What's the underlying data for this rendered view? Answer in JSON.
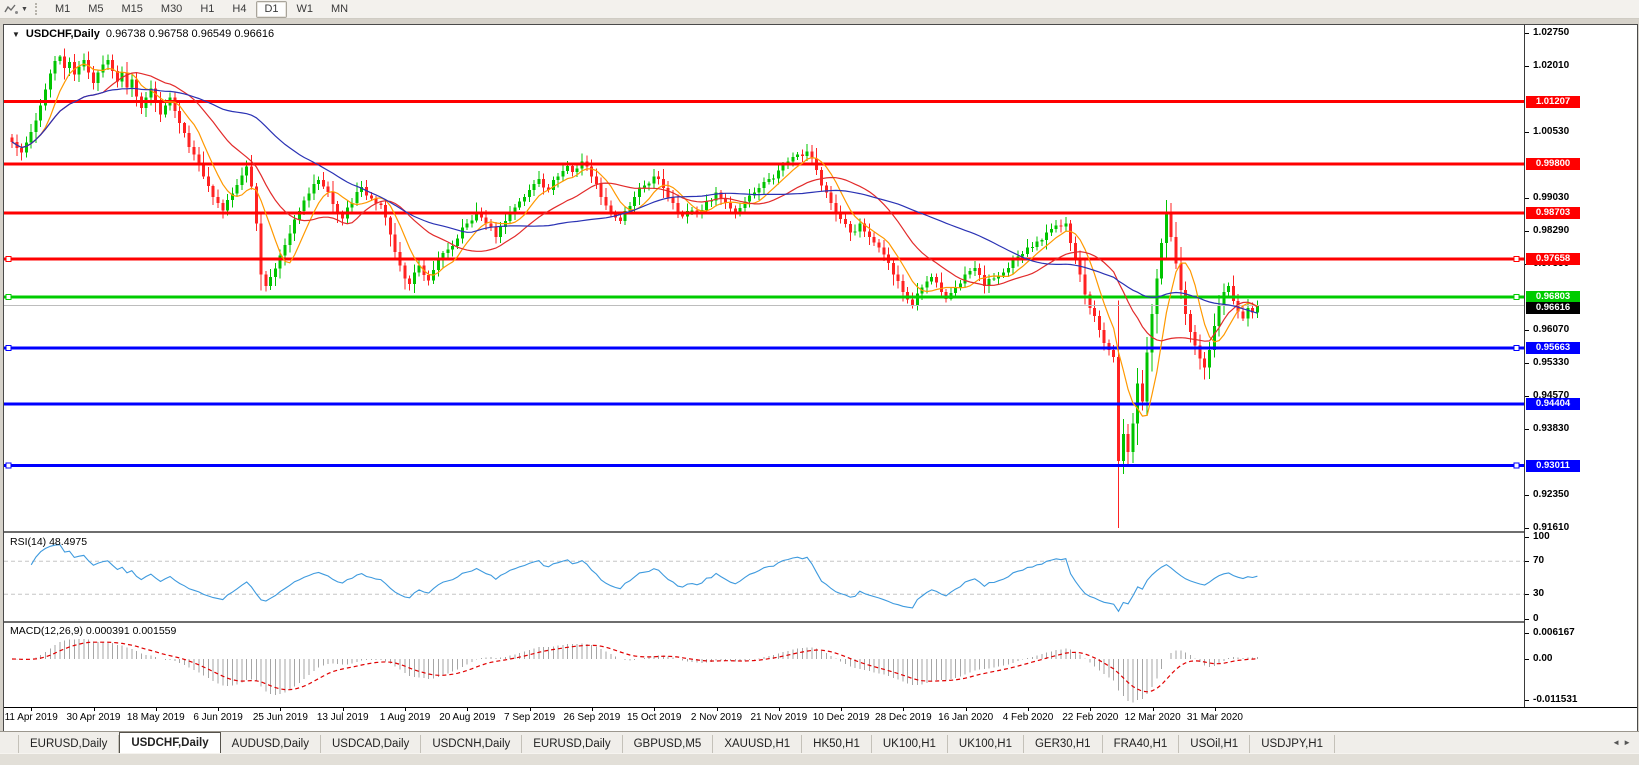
{
  "toolbar": {
    "timeframes": [
      "M1",
      "M5",
      "M15",
      "M30",
      "H1",
      "H4",
      "D1",
      "W1",
      "MN"
    ],
    "active_timeframe": "D1"
  },
  "chart_title": {
    "collapse_icon": "▼",
    "symbol": "USDCHF,Daily",
    "ohlc": "0.96738 0.96758 0.96549 0.96616"
  },
  "price_axis": {
    "ticks": [
      "1.02750",
      "1.02010",
      "1.00530",
      "0.99030",
      "0.98290",
      "0.97550",
      "0.96070",
      "0.95330",
      "0.94570",
      "0.93830",
      "0.92350",
      "0.91610"
    ]
  },
  "time_axis": {
    "dates": [
      "11 Apr 2019",
      "30 Apr 2019",
      "18 May 2019",
      "6 Jun 2019",
      "25 Jun 2019",
      "13 Jul 2019",
      "1 Aug 2019",
      "20 Aug 2019",
      "7 Sep 2019",
      "26 Sep 2019",
      "15 Oct 2019",
      "2 Nov 2019",
      "21 Nov 2019",
      "10 Dec 2019",
      "28 Dec 2019",
      "16 Jan 2020",
      "4 Feb 2020",
      "22 Feb 2020",
      "12 Mar 2020",
      "31 Mar 2020"
    ]
  },
  "indicators": {
    "rsi_label": "RSI(14) 48.4975",
    "rsi_levels": [
      "100",
      "70",
      "30",
      "0"
    ],
    "macd_label": "MACD(12,26,9) 0.000391 0.001559",
    "macd_levels": [
      "0.006167",
      "0.00",
      "-0.011531"
    ]
  },
  "tabs": {
    "items": [
      "EURUSD,Daily",
      "USDCHF,Daily",
      "AUDUSD,Daily",
      "USDCAD,Daily",
      "USDCNH,Daily",
      "EURUSD,Daily",
      "GBPUSD,M5",
      "XAUUSD,H1",
      "HK50,H1",
      "UK100,H1",
      "UK100,H1",
      "GER30,H1",
      "FRA40,H1",
      "USOil,H1",
      "USDJPY,H1"
    ],
    "active": "USDCHF,Daily",
    "nav_left": "◄",
    "nav_right": "►"
  },
  "chart_data": {
    "type": "candlestick",
    "symbol": "USDCHF",
    "timeframe": "Daily",
    "ohlc_display": {
      "open": 0.96738,
      "high": 0.96758,
      "low": 0.96549,
      "close": 0.96616
    },
    "price_range": [
      0.9161,
      1.0275
    ],
    "candle_count": 261,
    "up_color": "#00c400",
    "down_color": "#ff2222",
    "close_anchors": [
      [
        0,
        1.003
      ],
      [
        1,
        1.0016
      ],
      [
        2,
        1.0006
      ],
      [
        3,
        1.0028
      ],
      [
        4,
        1.0052
      ],
      [
        5,
        1.0078
      ],
      [
        6,
        1.0112
      ],
      [
        7,
        1.0148
      ],
      [
        8,
        1.0184
      ],
      [
        9,
        1.0212
      ],
      [
        10,
        1.0222
      ],
      [
        11,
        1.0196
      ],
      [
        12,
        1.021
      ],
      [
        13,
        1.0182
      ],
      [
        14,
        1.02
      ],
      [
        15,
        1.0214
      ],
      [
        16,
        1.0186
      ],
      [
        17,
        1.0162
      ],
      [
        18,
        1.0186
      ],
      [
        19,
        1.0204
      ],
      [
        20,
        1.0214
      ],
      [
        21,
        1.019
      ],
      [
        22,
        1.0166
      ],
      [
        23,
        1.0186
      ],
      [
        24,
        1.0152
      ],
      [
        25,
        1.017
      ],
      [
        26,
        1.0132
      ],
      [
        27,
        1.0106
      ],
      [
        28,
        1.013
      ],
      [
        29,
        1.015
      ],
      [
        30,
        1.012
      ],
      [
        31,
        1.0092
      ],
      [
        32,
        1.0112
      ],
      [
        33,
        1.013
      ],
      [
        34,
        1.01
      ],
      [
        35,
        1.0072
      ],
      [
        36,
        1.005
      ],
      [
        38,
        1.0002
      ],
      [
        40,
        0.9952
      ],
      [
        42,
        0.9906
      ],
      [
        44,
        0.9876
      ],
      [
        46,
        0.9914
      ],
      [
        48,
        0.9954
      ],
      [
        49,
        0.9974
      ],
      [
        50,
        0.993
      ],
      [
        51,
        0.9846
      ],
      [
        52,
        0.9732
      ],
      [
        53,
        0.9706
      ],
      [
        54,
        0.9726
      ],
      [
        56,
        0.9774
      ],
      [
        58,
        0.9824
      ],
      [
        60,
        0.9874
      ],
      [
        62,
        0.9914
      ],
      [
        64,
        0.9944
      ],
      [
        65,
        0.993
      ],
      [
        67,
        0.989
      ],
      [
        69,
        0.9858
      ],
      [
        71,
        0.9892
      ],
      [
        73,
        0.9928
      ],
      [
        75,
        0.9902
      ],
      [
        77,
        0.9888
      ],
      [
        78,
        0.986
      ],
      [
        79,
        0.9822
      ],
      [
        80,
        0.9782
      ],
      [
        81,
        0.9752
      ],
      [
        82,
        0.9722
      ],
      [
        83,
        0.971
      ],
      [
        84,
        0.9736
      ],
      [
        85,
        0.9752
      ],
      [
        86,
        0.973
      ],
      [
        87,
        0.9718
      ],
      [
        88,
        0.9742
      ],
      [
        89,
        0.9764
      ],
      [
        91,
        0.9788
      ],
      [
        93,
        0.9812
      ],
      [
        95,
        0.9846
      ],
      [
        97,
        0.9872
      ],
      [
        99,
        0.9846
      ],
      [
        101,
        0.9816
      ],
      [
        103,
        0.9852
      ],
      [
        104,
        0.9872
      ],
      [
        106,
        0.9896
      ],
      [
        108,
        0.9922
      ],
      [
        110,
        0.9946
      ],
      [
        112,
        0.9922
      ],
      [
        114,
        0.9952
      ],
      [
        116,
        0.9976
      ],
      [
        117,
        0.9962
      ],
      [
        119,
        0.9986
      ],
      [
        121,
        0.9952
      ],
      [
        123,
        0.9906
      ],
      [
        125,
        0.9872
      ],
      [
        127,
        0.9852
      ],
      [
        129,
        0.9886
      ],
      [
        130,
        0.9906
      ],
      [
        132,
        0.9932
      ],
      [
        134,
        0.9952
      ],
      [
        136,
        0.9926
      ],
      [
        138,
        0.9892
      ],
      [
        140,
        0.9862
      ],
      [
        142,
        0.9876
      ],
      [
        143,
        0.987
      ],
      [
        145,
        0.9896
      ],
      [
        147,
        0.9916
      ],
      [
        149,
        0.9892
      ],
      [
        151,
        0.9872
      ],
      [
        153,
        0.9896
      ],
      [
        155,
        0.9916
      ],
      [
        156,
        0.9926
      ],
      [
        158,
        0.9946
      ],
      [
        160,
        0.9966
      ],
      [
        162,
        0.9986
      ],
      [
        164,
        1.0002
      ],
      [
        166,
        1.0008
      ],
      [
        167,
        0.9992
      ],
      [
        169,
        0.9932
      ],
      [
        171,
        0.9892
      ],
      [
        173,
        0.9856
      ],
      [
        175,
        0.9826
      ],
      [
        177,
        0.9846
      ],
      [
        179,
        0.9816
      ],
      [
        181,
        0.9792
      ],
      [
        182,
        0.9776
      ],
      [
        184,
        0.9732
      ],
      [
        186,
        0.9692
      ],
      [
        188,
        0.9662
      ],
      [
        190,
        0.9702
      ],
      [
        192,
        0.9726
      ],
      [
        194,
        0.9692
      ],
      [
        195,
        0.9676
      ],
      [
        197,
        0.9702
      ],
      [
        199,
        0.9732
      ],
      [
        201,
        0.9746
      ],
      [
        203,
        0.9706
      ],
      [
        205,
        0.9722
      ],
      [
        207,
        0.9736
      ],
      [
        208,
        0.9746
      ],
      [
        210,
        0.9772
      ],
      [
        212,
        0.9792
      ],
      [
        214,
        0.9806
      ],
      [
        216,
        0.9826
      ],
      [
        218,
        0.9842
      ],
      [
        220,
        0.9846
      ],
      [
        221,
        0.9802
      ],
      [
        223,
        0.9732
      ],
      [
        225,
        0.9656
      ],
      [
        227,
        0.9606
      ],
      [
        229,
        0.9562
      ],
      [
        230,
        0.9546
      ],
      [
        231,
        0.9312
      ],
      [
        232,
        0.9372
      ],
      [
        233,
        0.9332
      ],
      [
        234,
        0.9396
      ],
      [
        235,
        0.9486
      ],
      [
        236,
        0.9446
      ],
      [
        237,
        0.9556
      ],
      [
        238,
        0.9642
      ],
      [
        239,
        0.9722
      ],
      [
        240,
        0.9802
      ],
      [
        241,
        0.9866
      ],
      [
        242,
        0.9816
      ],
      [
        243,
        0.9756
      ],
      [
        244,
        0.9696
      ],
      [
        245,
        0.9642
      ],
      [
        246,
        0.9602
      ],
      [
        247,
        0.9572
      ],
      [
        248,
        0.9542
      ],
      [
        249,
        0.9522
      ],
      [
        250,
        0.9562
      ],
      [
        251,
        0.9616
      ],
      [
        252,
        0.9662
      ],
      [
        253,
        0.9692
      ],
      [
        254,
        0.9706
      ],
      [
        255,
        0.9672
      ],
      [
        256,
        0.9648
      ],
      [
        257,
        0.9632
      ],
      [
        258,
        0.9656
      ],
      [
        259,
        0.9646
      ],
      [
        260,
        0.96616
      ]
    ],
    "high_overrides": {
      "10": 1.0226,
      "119": 1.0004,
      "166": 1.0025,
      "241": 0.9899
    },
    "low_overrides": {
      "53": 0.9693,
      "83": 0.9695,
      "188": 0.9655,
      "231": 0.9161,
      "249": 0.9495
    },
    "hlines": [
      {
        "price": 1.01207,
        "label": "1.01207",
        "color": "#ff0000",
        "width": 3,
        "handle": false
      },
      {
        "price": 0.998,
        "label": "0.99800",
        "color": "#ff0000",
        "width": 3,
        "handle": false
      },
      {
        "price": 0.98703,
        "label": "0.98703",
        "color": "#ff0000",
        "width": 3,
        "handle": false
      },
      {
        "price": 0.97658,
        "label": "0.97658",
        "color": "#ff0000",
        "width": 3,
        "handle": true
      },
      {
        "price": 0.96803,
        "label": "0.96803",
        "color": "#00cc00",
        "width": 3,
        "handle": true
      },
      {
        "price": 0.95663,
        "label": "0.95663",
        "color": "#0000ff",
        "width": 3,
        "handle": true
      },
      {
        "price": 0.94404,
        "label": "0.94404",
        "color": "#0000ff",
        "width": 3,
        "handle": false
      },
      {
        "price": 0.93011,
        "label": "0.93011",
        "color": "#0000ff",
        "width": 3,
        "handle": true
      }
    ],
    "current_price": {
      "price": 0.96616,
      "label": "0.96616",
      "line_color": "#bdbdbd",
      "badge_color": "#000000"
    },
    "moving_averages": [
      {
        "period": 7,
        "color": "#ff9900"
      },
      {
        "period": 20,
        "color": "#e22b2b"
      },
      {
        "period": 45,
        "color": "#2a32b4"
      }
    ],
    "rsi": {
      "period": 14,
      "current": 48.4975,
      "levels": [
        70,
        30
      ],
      "range": [
        0,
        100
      ],
      "color": "#3e9ade"
    },
    "macd": {
      "fast": 12,
      "slow": 26,
      "signal": 9,
      "current_main": 0.000391,
      "current_signal": 0.001559,
      "range": [
        -0.011531,
        0.006167
      ],
      "histogram_color": "#a6a6a6",
      "signal_color": "#e00000"
    }
  }
}
